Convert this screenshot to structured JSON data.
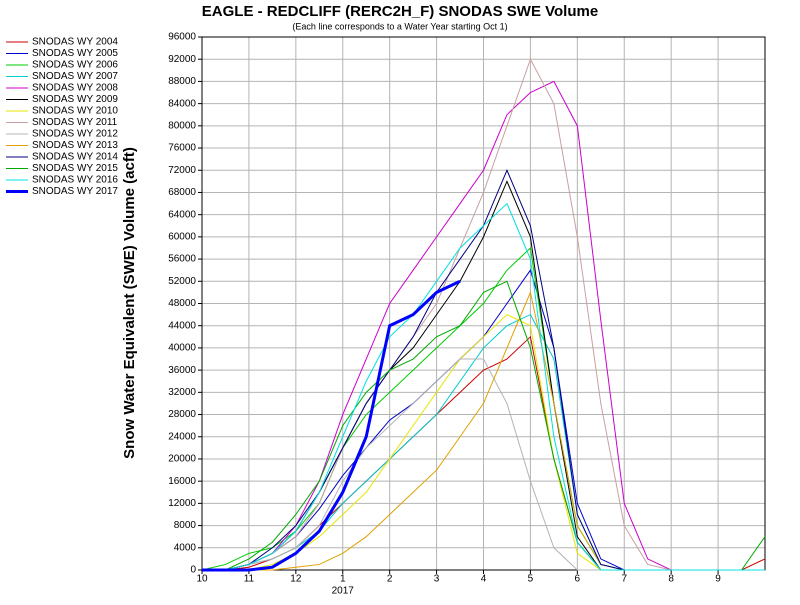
{
  "chart_data": {
    "type": "line",
    "title": "EAGLE - REDCLIFF (RERC2H_F) SNODAS SWE Volume",
    "subtitle": "(Each line corresponds to a Water Year starting Oct 1)",
    "y_label": "Snow Water Equivalent (SWE) Volume (acft)",
    "x_year_label": "2017",
    "x": [
      0,
      0.5,
      1,
      1.5,
      2,
      2.5,
      3,
      3.5,
      4,
      4.5,
      5,
      5.5,
      6,
      6.5,
      7,
      7.5,
      8,
      8.5,
      9,
      9.5,
      10,
      10.5,
      11,
      11.5,
      12
    ],
    "xlim": [
      0,
      12
    ],
    "xticks": [
      {
        "value": 0,
        "label": "10"
      },
      {
        "value": 1,
        "label": "11"
      },
      {
        "value": 2,
        "label": "12"
      },
      {
        "value": 3,
        "label": "1"
      },
      {
        "value": 4,
        "label": "2"
      },
      {
        "value": 5,
        "label": "3"
      },
      {
        "value": 6,
        "label": "4"
      },
      {
        "value": 7,
        "label": "5"
      },
      {
        "value": 8,
        "label": "6"
      },
      {
        "value": 9,
        "label": "7"
      },
      {
        "value": 10,
        "label": "8"
      },
      {
        "value": 11,
        "label": "9"
      }
    ],
    "ylim": [
      0,
      96000
    ],
    "yticks": [
      0,
      4000,
      8000,
      12000,
      16000,
      20000,
      24000,
      28000,
      32000,
      36000,
      40000,
      44000,
      48000,
      52000,
      56000,
      60000,
      64000,
      68000,
      72000,
      76000,
      80000,
      84000,
      88000,
      92000,
      96000
    ],
    "grid": true,
    "legend": "outside-left",
    "series": [
      {
        "name": "SNODAS WY 2004",
        "color": "#cc0000",
        "line_width": 1,
        "values": [
          0,
          0,
          500,
          2000,
          4000,
          8000,
          12000,
          16000,
          20000,
          24000,
          28000,
          32000,
          36000,
          38000,
          42000,
          20000,
          5000,
          0,
          0,
          0,
          0,
          0,
          0,
          0,
          2000
        ]
      },
      {
        "name": "SNODAS WY 2005",
        "color": "#0000cc",
        "line_width": 1,
        "values": [
          0,
          0,
          1000,
          3000,
          6000,
          11000,
          17000,
          22000,
          27000,
          30000,
          34000,
          38000,
          42000,
          48000,
          54000,
          40000,
          12000,
          2000,
          0,
          0,
          0,
          0,
          0,
          0,
          0
        ]
      },
      {
        "name": "SNODAS WY 2006",
        "color": "#00cc00",
        "line_width": 1,
        "values": [
          0,
          1000,
          3000,
          4000,
          7000,
          12000,
          22000,
          28000,
          32000,
          36000,
          40000,
          44000,
          48000,
          54000,
          58000,
          30000,
          8000,
          1000,
          0,
          0,
          0,
          0,
          0,
          0,
          0
        ]
      },
      {
        "name": "SNODAS WY 2007",
        "color": "#00cccc",
        "line_width": 1,
        "values": [
          0,
          0,
          1000,
          2000,
          4000,
          7000,
          12000,
          16000,
          20000,
          24000,
          28000,
          34000,
          40000,
          44000,
          46000,
          38000,
          10000,
          1000,
          0,
          0,
          0,
          0,
          0,
          0,
          0
        ]
      },
      {
        "name": "SNODAS WY 2008",
        "color": "#cc00cc",
        "line_width": 1,
        "values": [
          0,
          0,
          1000,
          3000,
          8000,
          16000,
          28000,
          38000,
          48000,
          54000,
          60000,
          66000,
          72000,
          82000,
          86000,
          88000,
          80000,
          45000,
          12000,
          2000,
          0,
          0,
          0,
          0,
          0
        ]
      },
      {
        "name": "SNODAS WY 2009",
        "color": "#000000",
        "line_width": 1,
        "values": [
          0,
          0,
          1000,
          3000,
          7000,
          14000,
          22000,
          30000,
          36000,
          40000,
          46000,
          52000,
          60000,
          70000,
          60000,
          30000,
          6000,
          0,
          0,
          0,
          0,
          0,
          0,
          0,
          0
        ]
      },
      {
        "name": "SNODAS WY 2010",
        "color": "#e6e600",
        "line_width": 1,
        "values": [
          0,
          0,
          0,
          1000,
          3000,
          6000,
          10000,
          14000,
          20000,
          26000,
          32000,
          38000,
          42000,
          46000,
          44000,
          20000,
          3000,
          0,
          0,
          0,
          0,
          0,
          0,
          0,
          0
        ]
      },
      {
        "name": "SNODAS WY 2011",
        "color": "#c8a0a0",
        "line_width": 1,
        "values": [
          0,
          0,
          1000,
          3000,
          6000,
          12000,
          22000,
          30000,
          36000,
          42000,
          48000,
          58000,
          68000,
          80000,
          92000,
          84000,
          60000,
          30000,
          8000,
          1000,
          0,
          0,
          0,
          0,
          0
        ]
      },
      {
        "name": "SNODAS WY 2012",
        "color": "#b4b4b4",
        "line_width": 1,
        "values": [
          0,
          0,
          1000,
          2000,
          4000,
          8000,
          16000,
          22000,
          26000,
          30000,
          34000,
          38000,
          38000,
          30000,
          16000,
          4000,
          0,
          0,
          0,
          0,
          0,
          0,
          0,
          0,
          0
        ]
      },
      {
        "name": "SNODAS WY 2013",
        "color": "#e0a000",
        "line_width": 1,
        "values": [
          0,
          0,
          0,
          0,
          500,
          1000,
          3000,
          6000,
          10000,
          14000,
          18000,
          24000,
          30000,
          40000,
          50000,
          30000,
          8000,
          1000,
          0,
          0,
          0,
          0,
          0,
          0,
          0
        ]
      },
      {
        "name": "SNODAS WY 2014",
        "color": "#000080",
        "line_width": 1,
        "values": [
          0,
          0,
          1000,
          4000,
          8000,
          14000,
          22000,
          30000,
          36000,
          42000,
          50000,
          56000,
          62000,
          72000,
          62000,
          40000,
          10000,
          1000,
          0,
          0,
          0,
          0,
          0,
          0,
          0
        ]
      },
      {
        "name": "SNODAS WY 2015",
        "color": "#00aa00",
        "line_width": 1,
        "values": [
          0,
          0,
          2000,
          5000,
          10000,
          16000,
          26000,
          32000,
          36000,
          38000,
          42000,
          44000,
          50000,
          52000,
          40000,
          20000,
          5000,
          0,
          0,
          0,
          0,
          0,
          0,
          0,
          6000
        ]
      },
      {
        "name": "SNODAS WY 2016",
        "color": "#00e0e0",
        "line_width": 1,
        "values": [
          0,
          0,
          1000,
          3000,
          7000,
          14000,
          24000,
          34000,
          42000,
          46000,
          52000,
          58000,
          62000,
          66000,
          56000,
          24000,
          5000,
          0,
          0,
          0,
          0,
          0,
          0,
          0,
          0
        ]
      },
      {
        "name": "SNODAS WY 2017",
        "color": "#0000ff",
        "line_width": 3,
        "values": [
          0,
          0,
          0,
          500,
          3000,
          7000,
          14000,
          24000,
          44000,
          46000,
          50000,
          52000,
          null,
          null,
          null,
          null,
          null,
          null,
          null,
          null,
          null,
          null,
          null,
          null,
          null
        ]
      }
    ]
  }
}
